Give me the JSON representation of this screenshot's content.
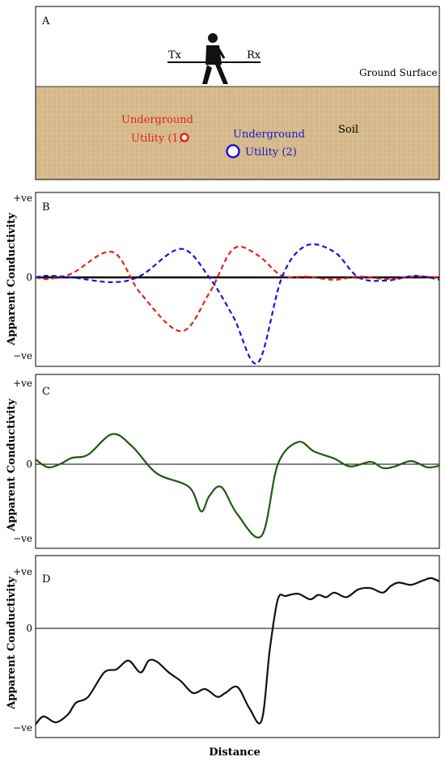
{
  "panelA": {
    "label": "A",
    "tx": "Tx",
    "rx": "Rx",
    "ground_surface": "Ground Surface",
    "soil": "Soil",
    "utility1_line1": "Underground",
    "utility1_line2": "Utility (1)",
    "utility2_line1": "Underground",
    "utility2_line2": "Utility (2)",
    "colors": {
      "utility1": "#e8201a",
      "utility2": "#1a14d6",
      "soil": "#d7bb8e"
    }
  },
  "panelB": {
    "label": "B"
  },
  "panelC": {
    "label": "C"
  },
  "panelD": {
    "label": "D"
  },
  "ylabel": "Apparent Conductivity",
  "ticks": {
    "pos": "+ve",
    "zero": "0",
    "neg": "−ve"
  },
  "xlabel": "Distance",
  "chart_data": [
    {
      "type": "line",
      "title": "B",
      "ylabel": "Apparent Conductivity",
      "ylim": [
        -1,
        1
      ],
      "x": [
        0,
        0.03,
        0.09,
        0.19,
        0.26,
        0.36,
        0.43,
        0.49,
        0.55,
        0.61,
        0.67,
        0.74,
        0.8,
        0.87,
        0.94,
        1
      ],
      "series": [
        {
          "name": "Utility (1)",
          "color": "#e8201a",
          "style": "dashed",
          "values": [
            0,
            -0.02,
            0.05,
            0.32,
            -0.2,
            -0.68,
            -0.2,
            0.36,
            0.28,
            0.02,
            0.01,
            -0.03,
            0.01,
            -0.02,
            0.01,
            0
          ]
        },
        {
          "name": "Utility (2)",
          "color": "#1a14d6",
          "style": "dashed",
          "values": [
            0,
            0.02,
            0.0,
            -0.06,
            0.02,
            0.36,
            0.0,
            -0.5,
            -1.08,
            0.0,
            0.4,
            0.32,
            0.0,
            -0.04,
            0.02,
            -0.03
          ]
        }
      ]
    },
    {
      "type": "line",
      "title": "C",
      "ylabel": "Apparent Conductivity",
      "ylim": [
        -1,
        1
      ],
      "x": [
        0,
        0.03,
        0.06,
        0.09,
        0.13,
        0.19,
        0.24,
        0.3,
        0.38,
        0.41,
        0.43,
        0.46,
        0.5,
        0.56,
        0.6,
        0.65,
        0.69,
        0.74,
        0.78,
        0.83,
        0.86,
        0.89,
        0.93,
        0.97,
        1
      ],
      "series": [
        {
          "name": "",
          "color": "#1e5a12",
          "style": "solid",
          "values": [
            0.06,
            -0.04,
            0.0,
            0.08,
            0.12,
            0.38,
            0.22,
            -0.12,
            -0.3,
            -0.62,
            -0.42,
            -0.3,
            -0.66,
            -0.94,
            0.0,
            0.28,
            0.16,
            0.07,
            -0.03,
            0.03,
            -0.05,
            -0.03,
            0.04,
            -0.04,
            -0.02
          ]
        }
      ]
    },
    {
      "type": "line",
      "title": "D",
      "ylabel": "Apparent Conductivity",
      "xlabel": "Distance",
      "ylim": [
        -1,
        1
      ],
      "x": [
        0,
        0.02,
        0.05,
        0.08,
        0.1,
        0.13,
        0.17,
        0.2,
        0.23,
        0.26,
        0.28,
        0.3,
        0.33,
        0.36,
        0.39,
        0.42,
        0.45,
        0.47,
        0.5,
        0.53,
        0.56,
        0.58,
        0.6,
        0.62,
        0.65,
        0.68,
        0.7,
        0.72,
        0.74,
        0.77,
        0.8,
        0.83,
        0.86,
        0.88,
        0.9,
        0.93,
        0.96,
        0.98,
        1
      ],
      "series": [
        {
          "name": "",
          "color": "#111111",
          "style": "solid",
          "values": [
            -0.98,
            -0.9,
            -0.96,
            -0.88,
            -0.76,
            -0.7,
            -0.45,
            -0.42,
            -0.33,
            -0.45,
            -0.33,
            -0.34,
            -0.45,
            -0.54,
            -0.66,
            -0.62,
            -0.7,
            -0.66,
            -0.6,
            -0.82,
            -0.94,
            -0.22,
            0.52,
            0.58,
            0.62,
            0.52,
            0.6,
            0.56,
            0.64,
            0.56,
            0.7,
            0.72,
            0.64,
            0.76,
            0.82,
            0.78,
            0.86,
            0.9,
            0.84
          ]
        }
      ]
    }
  ]
}
